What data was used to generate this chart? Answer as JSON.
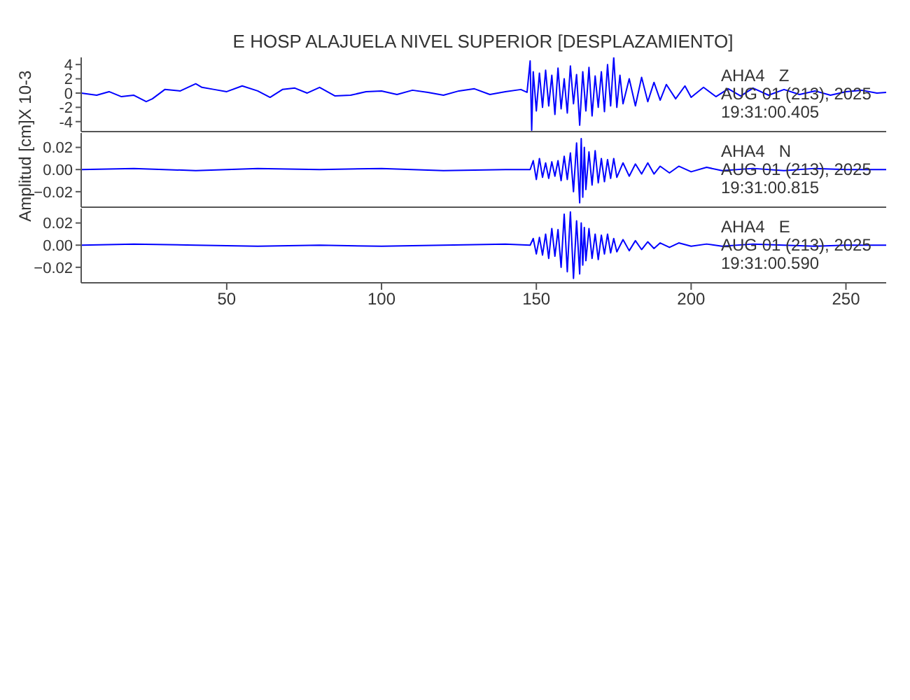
{
  "chart_data": [
    {
      "type": "line",
      "title": "E HOSP ALAJUELA NIVEL SUPERIOR [DESPLAZAMIENTO]",
      "ylabel": "X 10-3",
      "xlim": [
        3,
        263
      ],
      "xticks": [
        50,
        100,
        150,
        200,
        250
      ],
      "ylim": [
        -5.4,
        5
      ],
      "yticks": [
        -4,
        -2,
        0,
        2,
        4
      ],
      "tick_labels": "y",
      "annotations": [
        "AHA4   Z",
        "AUG 01 (213), 2025",
        "19:31:00.405"
      ],
      "series": [
        {
          "color": "#0000ff",
          "x": [
            3,
            8,
            12,
            16,
            20,
            24,
            26,
            30,
            35,
            40,
            42,
            46,
            50,
            55,
            60,
            64,
            68,
            72,
            76,
            80,
            85,
            90,
            95,
            100,
            105,
            110,
            115,
            120,
            125,
            130,
            135,
            140,
            145,
            147,
            148,
            148.5,
            149,
            150,
            151,
            152,
            153,
            154,
            155,
            156,
            157,
            158,
            159,
            160,
            161,
            162,
            163,
            164,
            165,
            166,
            167,
            168,
            169,
            170,
            171,
            172,
            173,
            174,
            175,
            176,
            177,
            178,
            180,
            182,
            184,
            186,
            188,
            190,
            192,
            195,
            198,
            200,
            204,
            208,
            212,
            216,
            220,
            225,
            230,
            235,
            240,
            245,
            250,
            255,
            260,
            263
          ],
          "values": [
            0,
            -0.3,
            0.2,
            -0.5,
            -0.3,
            -1.2,
            -0.8,
            0.5,
            0.3,
            1.3,
            0.8,
            0.5,
            0.2,
            1.0,
            0.3,
            -0.6,
            0.5,
            0.7,
            0,
            0.8,
            -0.4,
            -0.3,
            0.2,
            0.3,
            -0.2,
            0.4,
            0.1,
            -0.3,
            0.3,
            0.6,
            -0.2,
            0.2,
            0.5,
            0.1,
            4.5,
            -5.2,
            3.0,
            -2.5,
            2.8,
            -2.0,
            3.2,
            -1.8,
            2.5,
            -3.0,
            3.5,
            -2.2,
            2.0,
            -2.8,
            3.8,
            -1.5,
            2.6,
            -4.5,
            3.0,
            -2.5,
            3.6,
            -3.2,
            2.4,
            -2.0,
            3.0,
            -2.6,
            4.0,
            -1.8,
            5.0,
            -2.0,
            2.5,
            -1.5,
            2.0,
            -1.8,
            2.2,
            -1.2,
            1.5,
            -1.0,
            1.2,
            -0.8,
            1.0,
            -0.6,
            0.8,
            -0.5,
            0.6,
            -0.4,
            0.7,
            -0.3,
            0.5,
            -0.2,
            0.3,
            -0.3,
            0.2,
            0.4,
            0,
            0.1
          ]
        }
      ]
    },
    {
      "type": "line",
      "ylabel": "Amplitud [cm]",
      "xlim": [
        3,
        263
      ],
      "xticks": [
        50,
        100,
        150,
        200,
        250
      ],
      "ylim": [
        -0.034,
        0.033
      ],
      "yticks": [
        {
          "value": -0.02,
          "label": "−0.02"
        },
        {
          "value": 0,
          "label": "0.00"
        },
        {
          "value": 0.02,
          "label": "0.02"
        }
      ],
      "tick_labels": "y",
      "annotations": [
        "AHA4   N",
        "AUG 01 (213), 2025",
        "19:31:00.815"
      ],
      "series": [
        {
          "color": "#0000ff",
          "x": [
            3,
            20,
            40,
            60,
            80,
            100,
            120,
            140,
            148,
            149,
            150,
            151,
            152,
            153,
            154,
            155,
            156,
            157,
            158,
            159,
            160,
            161,
            162,
            163,
            164,
            164.5,
            165,
            165.5,
            166,
            167,
            168,
            169,
            170,
            171,
            172,
            173,
            174,
            175,
            176,
            178,
            180,
            182,
            184,
            186,
            188,
            190,
            193,
            196,
            200,
            205,
            210,
            220,
            230,
            240,
            250,
            263
          ],
          "values": [
            0,
            0.001,
            -0.001,
            0.001,
            0,
            0.001,
            -0.001,
            0,
            0,
            0.008,
            -0.009,
            0.01,
            -0.007,
            0.006,
            -0.008,
            0.007,
            -0.006,
            0.008,
            -0.01,
            0.012,
            -0.009,
            0.015,
            -0.02,
            0.024,
            -0.03,
            0.028,
            -0.025,
            0.02,
            -0.018,
            0.016,
            -0.014,
            0.017,
            -0.012,
            0.01,
            -0.011,
            0.009,
            -0.008,
            0.01,
            -0.007,
            0.006,
            -0.006,
            0.005,
            -0.004,
            0.006,
            -0.004,
            0.003,
            -0.003,
            0.003,
            -0.002,
            0.002,
            -0.001,
            0.001,
            -0.001,
            0.001,
            0,
            0
          ]
        }
      ]
    },
    {
      "type": "line",
      "xlim": [
        3,
        263
      ],
      "xticks": [
        50,
        100,
        150,
        200,
        250
      ],
      "ylim": [
        -0.034,
        0.033
      ],
      "yticks": [
        {
          "value": -0.02,
          "label": "−0.02"
        },
        {
          "value": 0,
          "label": "0.00"
        },
        {
          "value": 0.02,
          "label": "0.02"
        }
      ],
      "annotations": [
        "AHA4   E",
        "AUG 01 (213), 2025",
        "19:31:00.590"
      ],
      "series": [
        {
          "color": "#0000ff",
          "x": [
            3,
            20,
            40,
            60,
            80,
            100,
            120,
            140,
            148,
            149,
            150,
            151,
            152,
            153,
            154,
            155,
            156,
            157,
            158,
            159,
            160,
            161,
            162,
            163,
            164,
            164.5,
            165,
            165.5,
            166,
            167,
            168,
            169,
            170,
            171,
            172,
            173,
            174,
            175,
            176,
            178,
            180,
            182,
            184,
            186,
            188,
            190,
            193,
            196,
            200,
            205,
            210,
            220,
            230,
            240,
            250,
            263
          ],
          "values": [
            0,
            0.001,
            0,
            -0.001,
            0,
            -0.001,
            0,
            0.001,
            0,
            0.006,
            -0.008,
            0.007,
            -0.009,
            0.01,
            -0.012,
            0.015,
            -0.01,
            0.014,
            -0.02,
            0.028,
            -0.024,
            0.03,
            -0.03,
            0.022,
            -0.026,
            0.02,
            -0.018,
            0.016,
            -0.014,
            0.015,
            -0.012,
            0.01,
            -0.013,
            0.009,
            -0.008,
            0.01,
            -0.007,
            0.006,
            -0.006,
            0.005,
            -0.005,
            0.004,
            -0.004,
            0.003,
            -0.003,
            0.002,
            -0.002,
            0.002,
            -0.001,
            0.001,
            -0.001,
            0.001,
            0,
            -0.001,
            0,
            0
          ]
        }
      ]
    }
  ]
}
